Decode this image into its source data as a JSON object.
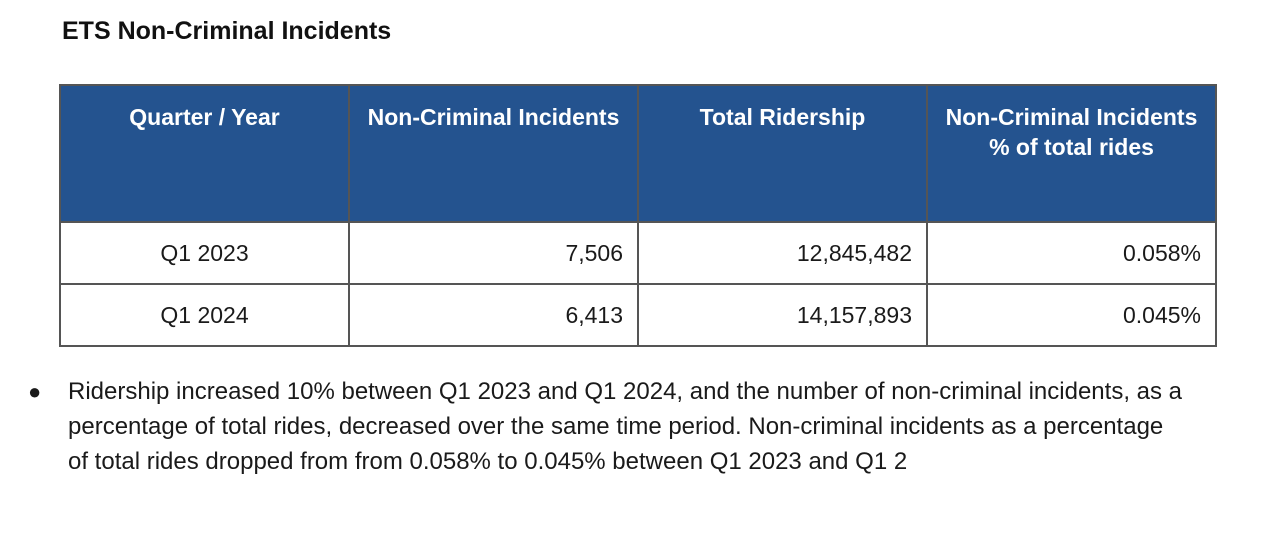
{
  "title": "ETS Non-Criminal Incidents",
  "table": {
    "headers": [
      "Quarter / Year",
      "Non-Criminal Incidents",
      "Total Ridership",
      "Non-Criminal Incidents % of total rides"
    ],
    "rows": [
      [
        "Q1 2023",
        "7,506",
        "12,845,482",
        "0.058%"
      ],
      [
        "Q1 2024",
        "6,413",
        "14,157,893",
        "0.045%"
      ]
    ]
  },
  "colors": {
    "header_bg": "#24538f",
    "header_text": "#ffffff"
  },
  "bullets": [
    "Ridership increased 10% between Q1 2023 and Q1 2024, and the number of non-criminal incidents, as a percentage of total rides, decreased over the same time period. Non-criminal incidents as a percentage of total rides dropped from from 0.058% to 0.045%  between Q1 2023 and Q1 2"
  ]
}
